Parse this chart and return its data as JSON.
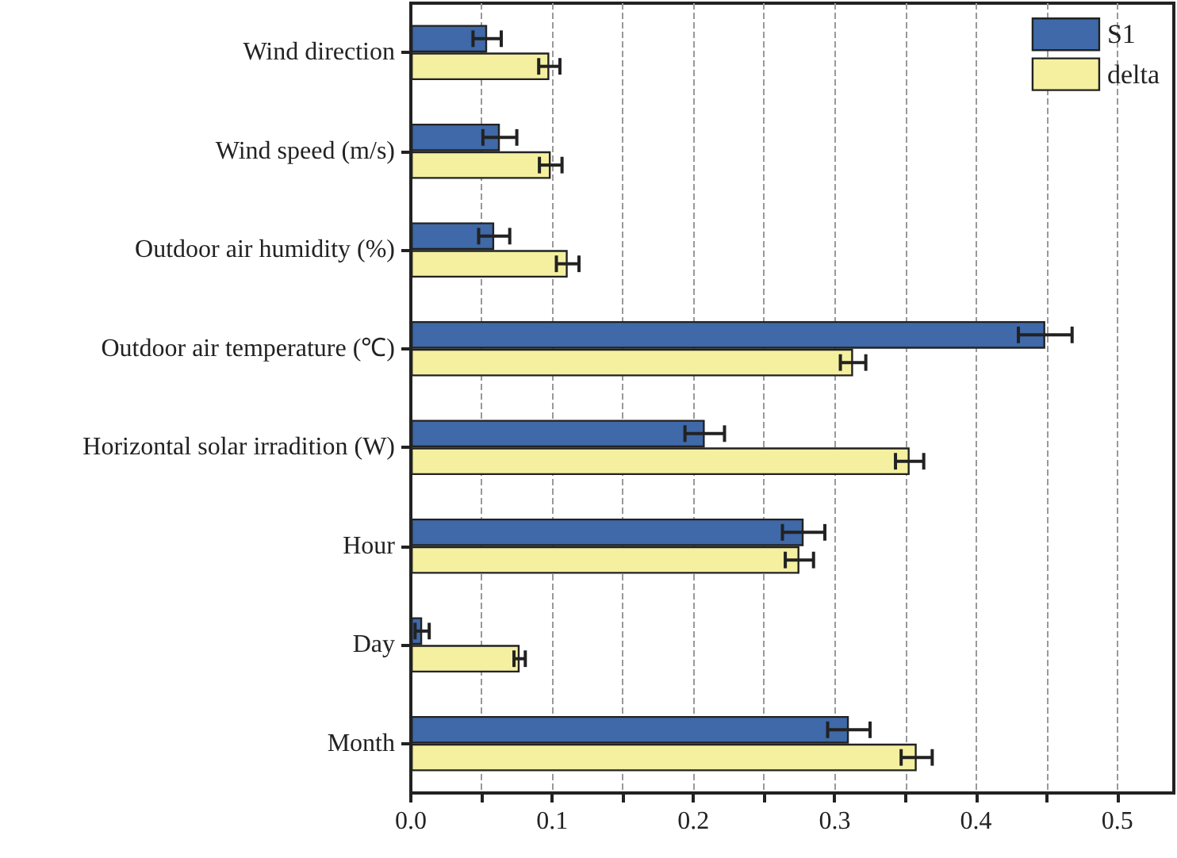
{
  "chart_data": {
    "type": "bar",
    "orientation": "horizontal",
    "categories": [
      "Wind direction",
      "Wind speed (m/s)",
      "Outdoor air humidity (%)",
      "Outdoor air temperature (℃)",
      "Horizontal solar irradition (W)",
      "Hour",
      "Day",
      "Month"
    ],
    "series": [
      {
        "name": "S1",
        "color": "#3f69a8",
        "values": [
          0.054,
          0.063,
          0.059,
          0.449,
          0.208,
          0.278,
          0.008,
          0.31
        ],
        "errors": [
          0.01,
          0.012,
          0.011,
          0.019,
          0.014,
          0.015,
          0.005,
          0.015
        ]
      },
      {
        "name": "delta",
        "color": "#f4f0a0",
        "values": [
          0.098,
          0.099,
          0.111,
          0.313,
          0.353,
          0.275,
          0.077,
          0.358
        ],
        "errors": [
          0.0075,
          0.008,
          0.008,
          0.009,
          0.01,
          0.01,
          0.004,
          0.011
        ]
      }
    ],
    "xlim": [
      0,
      0.54
    ],
    "xticks": [
      {
        "value": 0,
        "label": "0.0"
      },
      {
        "value": 0.05,
        "label": null
      },
      0.1,
      {
        "value": 0.15,
        "label": null
      },
      0.2,
      {
        "value": 0.25,
        "label": null
      },
      0.3,
      {
        "value": 0.35,
        "label": null
      },
      0.4,
      {
        "value": 0.45,
        "label": null
      },
      0.5
    ],
    "grid": "x",
    "legend": "top right"
  }
}
